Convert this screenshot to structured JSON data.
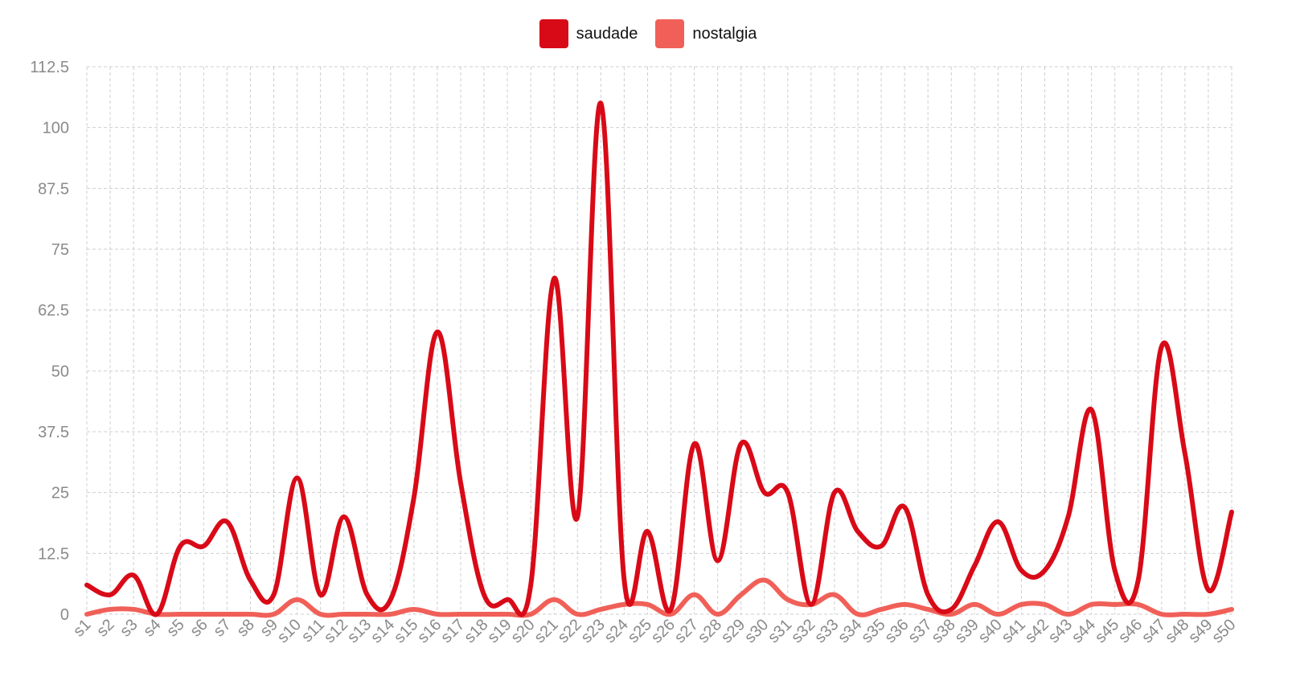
{
  "chart_data": {
    "type": "line",
    "categories": [
      "s1",
      "s2",
      "s3",
      "s4",
      "s5",
      "s6",
      "s7",
      "s8",
      "s9",
      "s10",
      "s11",
      "s12",
      "s13",
      "s14",
      "s15",
      "s16",
      "s17",
      "s18",
      "s19",
      "s20",
      "s21",
      "s22",
      "s23",
      "s24",
      "s25",
      "s26",
      "s27",
      "s28",
      "s29",
      "s30",
      "s31",
      "s32",
      "s33",
      "s34",
      "s35",
      "s36",
      "s37",
      "s38",
      "s39",
      "s40",
      "s41",
      "s42",
      "s43",
      "s44",
      "s45",
      "s46",
      "s47",
      "s48",
      "s49",
      "s50"
    ],
    "series": [
      {
        "name": "saudade",
        "color": "#d90a17",
        "values": [
          6,
          4,
          8,
          0,
          14,
          14,
          19,
          7,
          4,
          28,
          4,
          20,
          4,
          3,
          24,
          58,
          27,
          4,
          3,
          6,
          69,
          20,
          105,
          7,
          17,
          1,
          35,
          11,
          35,
          25,
          25,
          2,
          25,
          17,
          14,
          22,
          4,
          1,
          10,
          19,
          9,
          9,
          20,
          42,
          9,
          7,
          55,
          33,
          5,
          21
        ]
      },
      {
        "name": "nostalgia",
        "color": "#f06058",
        "values": [
          0,
          1,
          1,
          0,
          0,
          0,
          0,
          0,
          0,
          3,
          0,
          0,
          0,
          0,
          1,
          0,
          0,
          0,
          0,
          0,
          3,
          0,
          1,
          2,
          2,
          0,
          4,
          0,
          4,
          7,
          3,
          2,
          4,
          0,
          1,
          2,
          1,
          0,
          2,
          0,
          2,
          2,
          0,
          2,
          2,
          2,
          0,
          0,
          0,
          1
        ]
      }
    ],
    "ylim": [
      0,
      112.5
    ],
    "yticks": [
      "0",
      "12.5",
      "25",
      "37.5",
      "50",
      "62.5",
      "75",
      "87.5",
      "100",
      "112.5"
    ],
    "legend_position": "top-center",
    "grid": true
  }
}
